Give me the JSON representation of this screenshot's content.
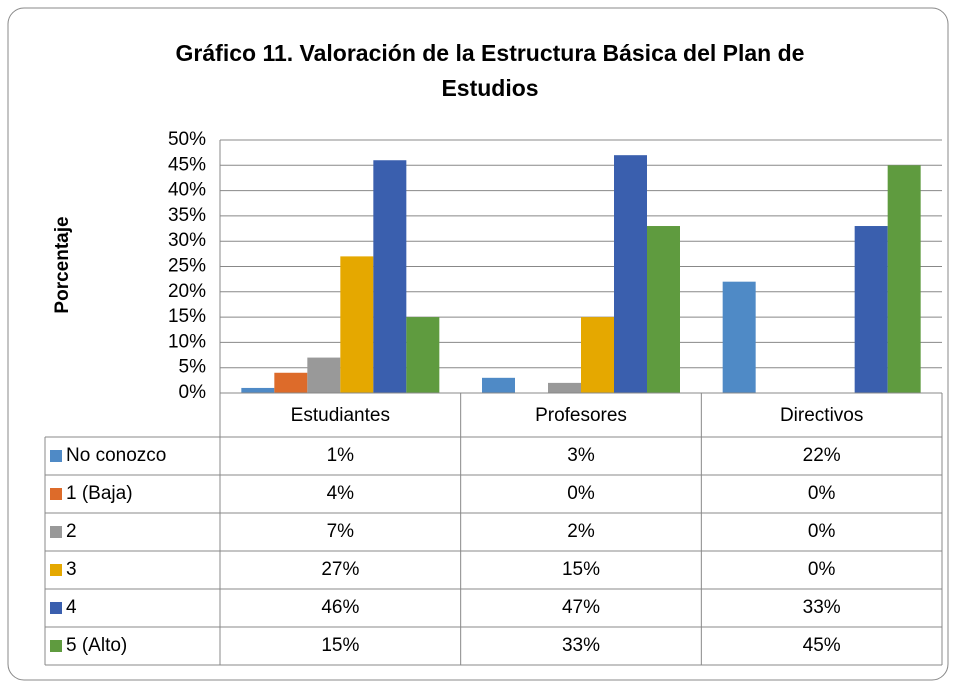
{
  "chart_data": {
    "type": "bar",
    "title": [
      "Gráfico 11. Valoración de la Estructura Básica del Plan de",
      "Estudios"
    ],
    "y_label": "Porcentaje",
    "categories": [
      "Estudiantes",
      "Profesores",
      "Directivos"
    ],
    "ylim": [
      0,
      50
    ],
    "yticks": [
      {
        "value": 0,
        "label": "0%"
      },
      {
        "value": 5,
        "label": "5%"
      },
      {
        "value": 10,
        "label": "10%"
      },
      {
        "value": 15,
        "label": "15%"
      },
      {
        "value": 20,
        "label": "20%"
      },
      {
        "value": 25,
        "label": "25%"
      },
      {
        "value": 30,
        "label": "30%"
      },
      {
        "value": 35,
        "label": "35%"
      },
      {
        "value": 40,
        "label": "40%"
      },
      {
        "value": 45,
        "label": "45%"
      },
      {
        "value": 50,
        "label": "50%"
      }
    ],
    "grid": true,
    "series": [
      {
        "name": "No conozco",
        "color": "#4f8ac6",
        "values": [
          1,
          3,
          22
        ],
        "value_labels": [
          "1%",
          "3%",
          "22%"
        ]
      },
      {
        "name": "1 (Baja)",
        "color": "#dd6b2a",
        "values": [
          4,
          0,
          0
        ],
        "value_labels": [
          "4%",
          "0%",
          "0%"
        ]
      },
      {
        "name": "2",
        "color": "#999999",
        "values": [
          7,
          2,
          0
        ],
        "value_labels": [
          "7%",
          "2%",
          "0%"
        ]
      },
      {
        "name": "3",
        "color": "#e5a800",
        "values": [
          27,
          15,
          0
        ],
        "value_labels": [
          "27%",
          "15%",
          "0%"
        ]
      },
      {
        "name": "4",
        "color": "#3a5fae",
        "values": [
          46,
          47,
          33
        ],
        "value_labels": [
          "46%",
          "47%",
          "33%"
        ]
      },
      {
        "name": "5 (Alto)",
        "color": "#5f9b3f",
        "values": [
          15,
          33,
          45
        ],
        "value_labels": [
          "15%",
          "33%",
          "45%"
        ]
      }
    ]
  }
}
